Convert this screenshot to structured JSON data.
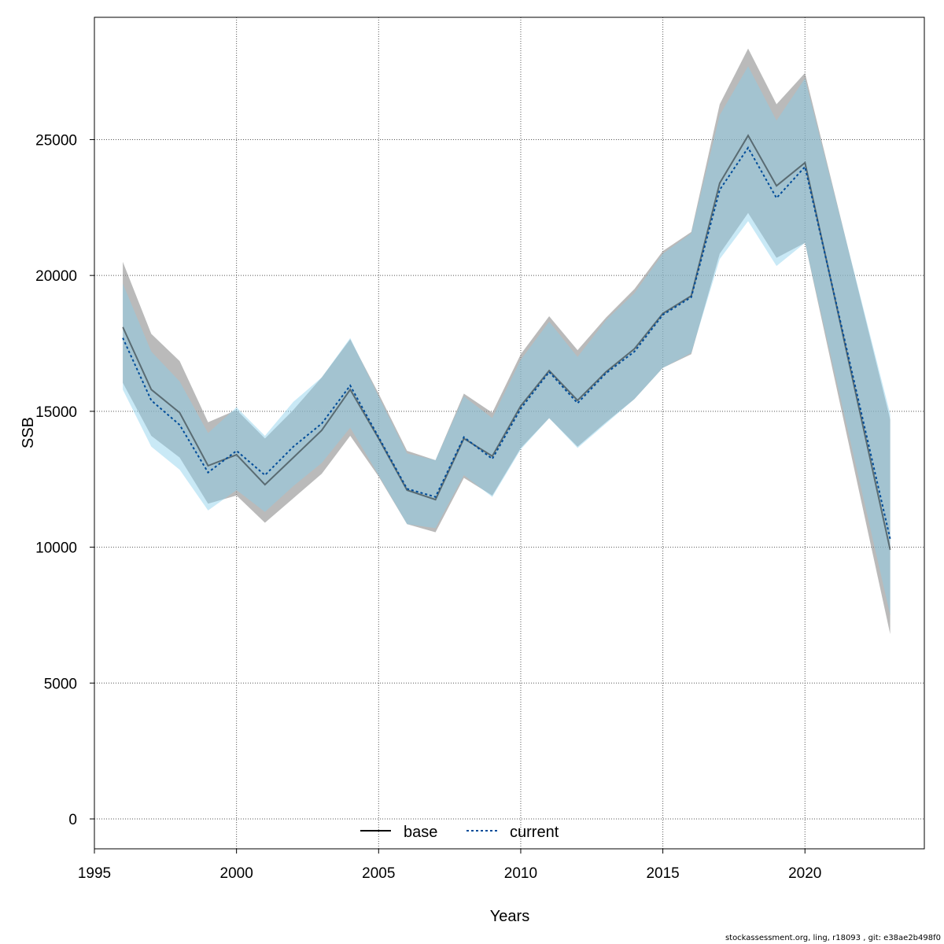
{
  "chart_data": {
    "type": "line",
    "title": "",
    "xlabel": "Years",
    "ylabel": "SSB",
    "xlim": [
      1995,
      2024.2
    ],
    "ylim": [
      -1100,
      29500
    ],
    "x_ticks": [
      1995,
      2000,
      2005,
      2010,
      2015,
      2020
    ],
    "y_ticks": [
      0,
      5000,
      10000,
      15000,
      20000,
      25000
    ],
    "grid": true,
    "legend_position": "bottom-center",
    "x": [
      1996,
      1997,
      1998,
      1999,
      2000,
      2001,
      2002,
      2003,
      2004,
      2005,
      2006,
      2007,
      2008,
      2009,
      2010,
      2011,
      2012,
      2013,
      2014,
      2015,
      2016,
      2017,
      2018,
      2019,
      2020,
      2023
    ],
    "series": [
      {
        "name": "base",
        "line_style": "solid",
        "line_color": "#000000",
        "band_color": "#8c8c8c",
        "values": [
          18100,
          15800,
          14950,
          13000,
          13400,
          12300,
          13300,
          14300,
          15800,
          14000,
          12100,
          11750,
          14000,
          13350,
          15200,
          16500,
          15400,
          16450,
          17300,
          18600,
          19250,
          23400,
          25150,
          23300,
          24150,
          9900
        ],
        "lower": [
          16050,
          14100,
          13300,
          11600,
          11900,
          10900,
          11800,
          12700,
          14100,
          12600,
          10850,
          10550,
          12550,
          11900,
          13650,
          14750,
          13700,
          14600,
          15450,
          16600,
          17100,
          20800,
          22300,
          20650,
          21200,
          6800
        ],
        "upper": [
          20500,
          17850,
          16850,
          14600,
          15050,
          14000,
          15050,
          16250,
          17650,
          15650,
          13550,
          13200,
          15650,
          14950,
          17100,
          18500,
          17250,
          18450,
          19500,
          20900,
          21600,
          26300,
          28350,
          26300,
          27450,
          14700
        ]
      },
      {
        "name": "current",
        "line_style": "dotted",
        "line_color": "#004c99",
        "band_color": "#87ceeb",
        "values": [
          17700,
          15400,
          14500,
          12750,
          13550,
          12650,
          13700,
          14550,
          15950,
          14050,
          12150,
          11850,
          14050,
          13250,
          15100,
          16450,
          15300,
          16400,
          17200,
          18550,
          19200,
          23150,
          24700,
          22850,
          24000,
          10300
        ],
        "lower": [
          15800,
          13700,
          12850,
          11350,
          12100,
          11300,
          12250,
          13100,
          14400,
          12650,
          10850,
          10700,
          12650,
          11850,
          13600,
          14750,
          13650,
          14550,
          15450,
          16600,
          17150,
          20600,
          22000,
          20350,
          21200,
          7500
        ],
        "upper": [
          19700,
          17200,
          16100,
          14200,
          15150,
          14100,
          15350,
          16250,
          17700,
          15550,
          13450,
          13200,
          15550,
          14750,
          16900,
          18300,
          17000,
          18350,
          19350,
          20800,
          21550,
          25900,
          27700,
          25700,
          27250,
          14900
        ]
      }
    ]
  },
  "footer_text": "stockassessment.org, ling, r18093 , git: e38ae2b498f0"
}
